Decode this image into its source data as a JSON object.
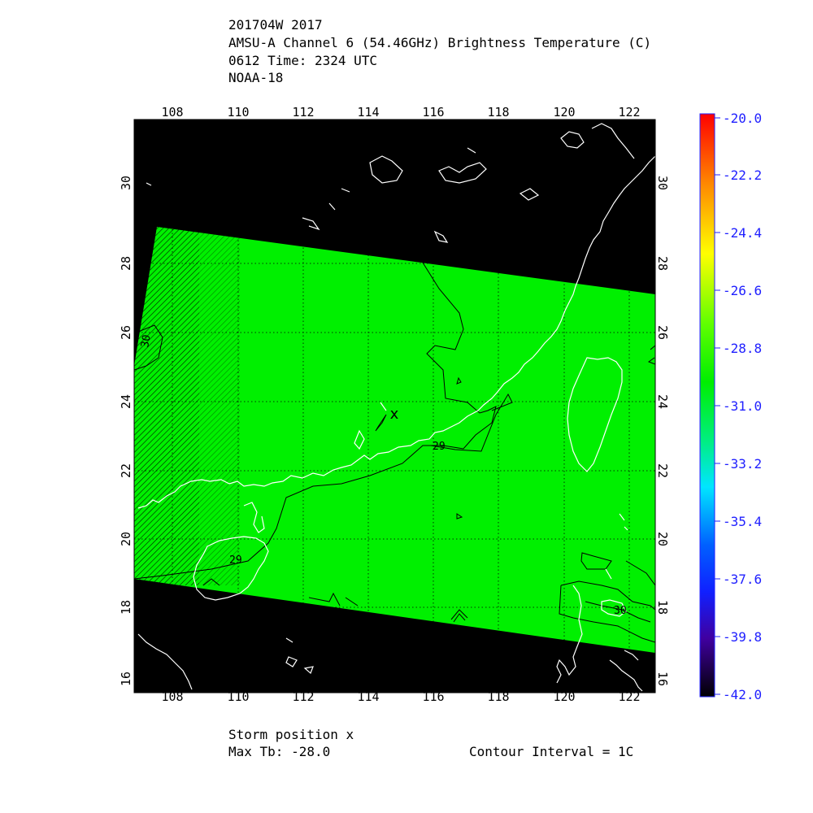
{
  "header": {
    "line1": "201704W 2017",
    "line2": "AMSU-A Channel 6 (54.46GHz) Brightness Temperature (C)",
    "line3": "0612 Time: 2324 UTC",
    "line4": "NOAA-18"
  },
  "map": {
    "lon_ticks": [
      "108",
      "110",
      "112",
      "114",
      "116",
      "118",
      "120",
      "122"
    ],
    "lat_ticks": [
      "16",
      "18",
      "20",
      "22",
      "24",
      "26",
      "28",
      "30"
    ],
    "contour_labels": [
      "29",
      "29",
      "30",
      "30"
    ],
    "storm_marker": "x",
    "colors": {
      "background": "#000000",
      "field": "#00f000",
      "coast": "#ffffff",
      "contour": "#000000",
      "grid": "#000000"
    }
  },
  "colorbar": {
    "labels": [
      "-20.0",
      "-22.2",
      "-24.4",
      "-26.6",
      "-28.8",
      "-31.0",
      "-33.2",
      "-35.4",
      "-37.6",
      "-39.8",
      "-42.0"
    ],
    "label_color": "#2020ff"
  },
  "footer": {
    "storm_position": "Storm position x",
    "max_tb": "Max Tb: -28.0",
    "contour_interval": "Contour Interval = 1C"
  }
}
